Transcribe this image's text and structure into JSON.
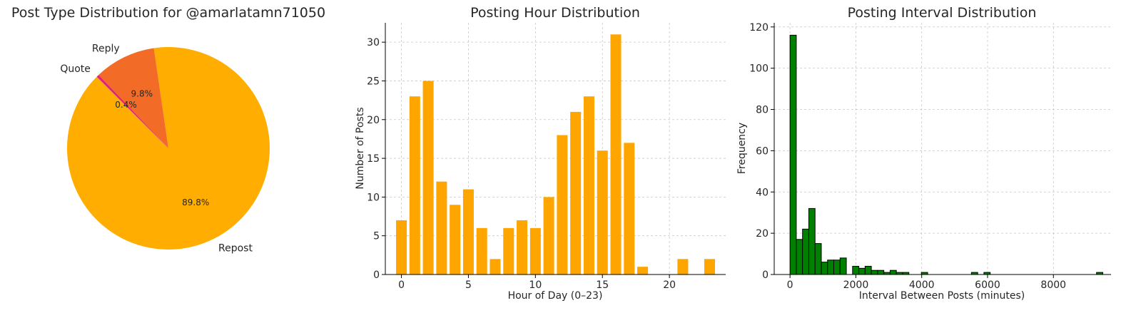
{
  "chart_data": [
    {
      "type": "pie",
      "title": "Post Type Distribution for @amarlatamn71050",
      "labels": [
        "Repost",
        "Reply",
        "Quote"
      ],
      "values": [
        89.8,
        9.8,
        0.4
      ],
      "pct_labels": [
        "89.8%",
        "9.8%",
        "0.4%"
      ],
      "colors": [
        "#ffad00",
        "#f26b27",
        "#e6207a"
      ],
      "start_angle_deg": 135,
      "direction": "counterclockwise"
    },
    {
      "type": "bar",
      "title": "Posting Hour Distribution",
      "xlabel": "Hour of Day (0–23)",
      "ylabel": "Number of Posts",
      "x": [
        0,
        1,
        2,
        3,
        4,
        5,
        6,
        7,
        8,
        9,
        10,
        11,
        12,
        13,
        14,
        15,
        16,
        17,
        18,
        21,
        23
      ],
      "values": [
        7,
        23,
        25,
        12,
        9,
        11,
        6,
        2,
        6,
        7,
        6,
        10,
        18,
        21,
        23,
        16,
        31,
        17,
        1,
        2,
        2
      ],
      "xlim": [
        -1.2,
        24.2
      ],
      "ylim": [
        0,
        32.5
      ],
      "xticks": [
        0,
        5,
        10,
        15,
        20
      ],
      "yticks": [
        0,
        5,
        10,
        15,
        20,
        25,
        30
      ],
      "color": "#ffa500",
      "grid": true
    },
    {
      "type": "bar",
      "subtype": "histogram",
      "title": "Posting Interval Distribution",
      "xlabel": "Interval Between Posts (minutes)",
      "ylabel": "Frequency",
      "bin_width": 190,
      "bin_starts": [
        0,
        190,
        380,
        570,
        760,
        950,
        1140,
        1330,
        1520,
        1900,
        2090,
        2280,
        2470,
        2660,
        2850,
        3040,
        3230,
        3420,
        3990,
        5510,
        5890,
        9310
      ],
      "values": [
        116,
        17,
        22,
        32,
        15,
        6,
        7,
        7,
        8,
        4,
        3,
        4,
        2,
        2,
        1,
        2,
        1,
        1,
        1,
        1,
        1,
        1
      ],
      "xlim": [
        -480,
        9750
      ],
      "ylim": [
        0,
        122
      ],
      "xticks": [
        0,
        2000,
        4000,
        6000,
        8000
      ],
      "yticks": [
        0,
        20,
        40,
        60,
        80,
        100,
        120
      ],
      "color": "#008000",
      "edgecolor": "#000000",
      "grid": true
    }
  ]
}
